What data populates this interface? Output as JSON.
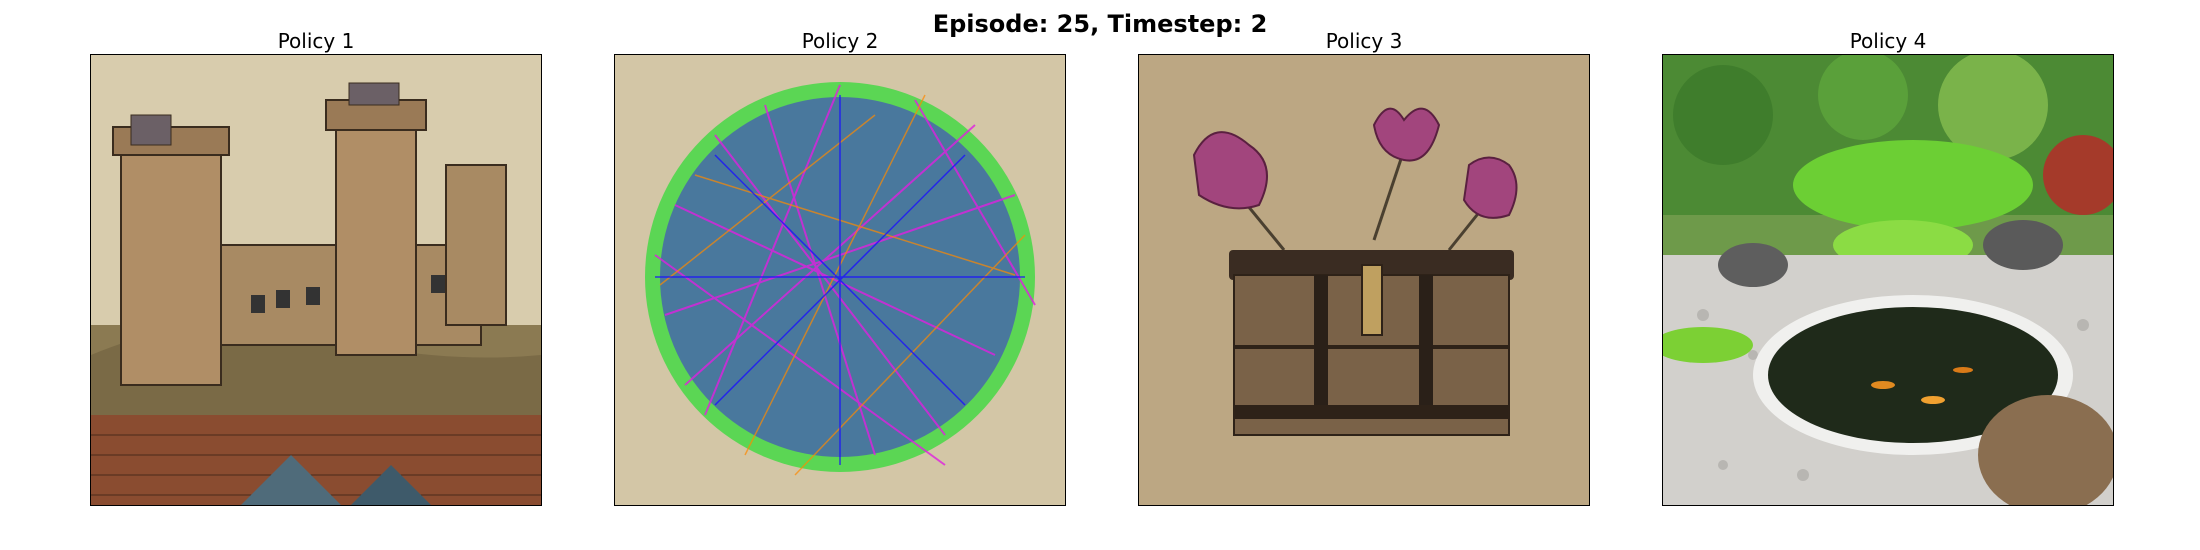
{
  "figure": {
    "suptitle": "Episode: 25, Timestep: 2"
  },
  "panels": [
    {
      "title": "Policy 1",
      "content": "medieval castle on a hill illustration"
    },
    {
      "title": "Policy 2",
      "content": "colorful network graph sphere"
    },
    {
      "title": "Policy 3",
      "content": "wooden chest with pink flowers"
    },
    {
      "title": "Policy 4",
      "content": "japanese garden with koi pond"
    }
  ]
}
